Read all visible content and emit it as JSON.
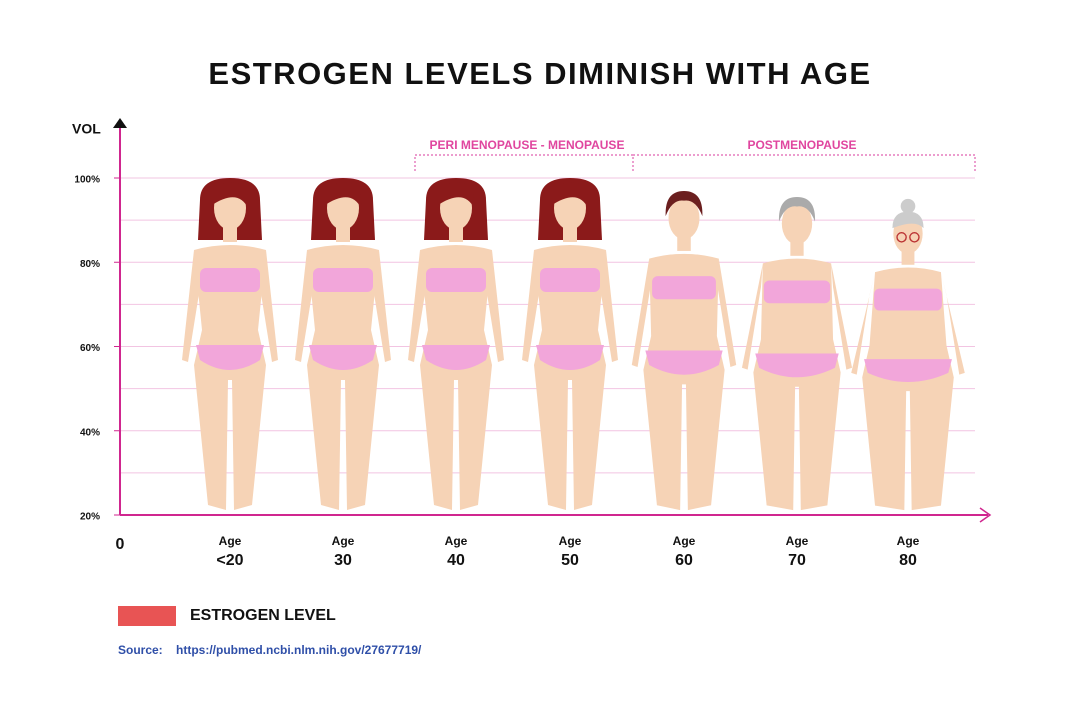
{
  "header": {
    "title": "ESTROGEN LEVELS DIMINISH WITH AGE"
  },
  "axis": {
    "label": "VOL",
    "origin": "0",
    "ticks": [
      "100%",
      "80%",
      "60%",
      "40%",
      "20%"
    ]
  },
  "phases": [
    "PERI MENOPAUSE - MENOPAUSE",
    "POSTMENOPAUSE"
  ],
  "ages": [
    {
      "label": "Age",
      "value": "<20"
    },
    {
      "label": "Age",
      "value": "30"
    },
    {
      "label": "Age",
      "value": "40"
    },
    {
      "label": "Age",
      "value": "50"
    },
    {
      "label": "Age",
      "value": "60"
    },
    {
      "label": "Age",
      "value": "70"
    },
    {
      "label": "Age",
      "value": "80"
    }
  ],
  "legend": "ESTROGEN LEVEL",
  "source": {
    "label": "Source:",
    "url": "https://pubmed.ncbi.nlm.nih.gov/27677719/"
  }
}
